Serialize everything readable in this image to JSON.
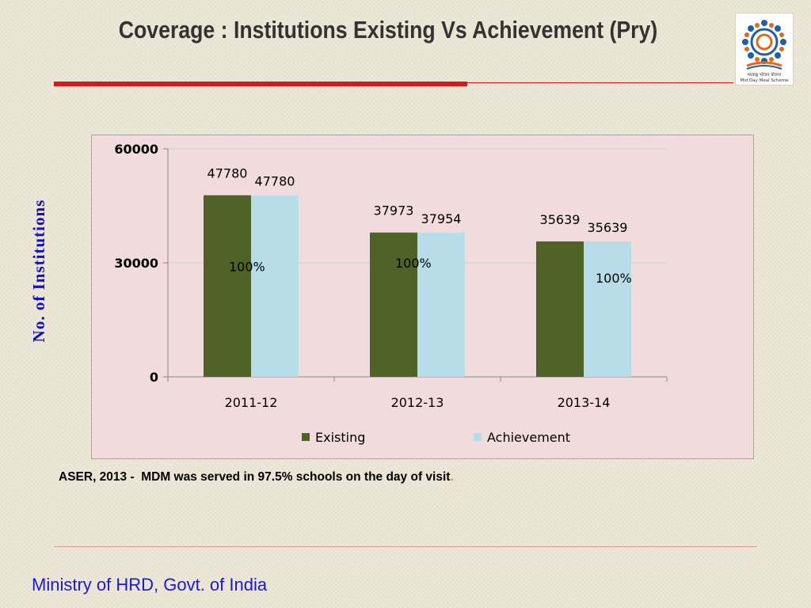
{
  "title": "Coverage : Institutions Existing Vs Achievement (Pry)",
  "y_axis_label": "No. of Institutions",
  "note": {
    "text": "ASER, 2013 -  MDM was served in 97.5% schools on the day of visit",
    "trail": "."
  },
  "footer": "Ministry of HRD, Govt. of India",
  "logo": {
    "caption_line1": "मध्याह्न भोजन योजना",
    "caption_line2": "Mid Day Meal Scheme"
  },
  "colors": {
    "existing": "#4f6228",
    "achievement": "#b7dde8",
    "title": "#333333",
    "accent_red": "#d01c1c",
    "footer_blue": "#1a1acc"
  },
  "chart_data": {
    "type": "bar",
    "categories": [
      "2011-12",
      "2012-13",
      "2013-14"
    ],
    "series": [
      {
        "name": "Existing",
        "values": [
          47780,
          37973,
          35639
        ]
      },
      {
        "name": "Achievement",
        "values": [
          47780,
          37954,
          35639
        ]
      }
    ],
    "data_labels": [
      [
        "47780",
        "37973",
        "35639"
      ],
      [
        "47780",
        "37954",
        "35639"
      ]
    ],
    "annotations": [
      "100%",
      "100%",
      "100%"
    ],
    "yticks": [
      "60000",
      "30000",
      "0"
    ],
    "ylim": [
      0,
      60000
    ],
    "legend": "bottom",
    "grid": true
  }
}
